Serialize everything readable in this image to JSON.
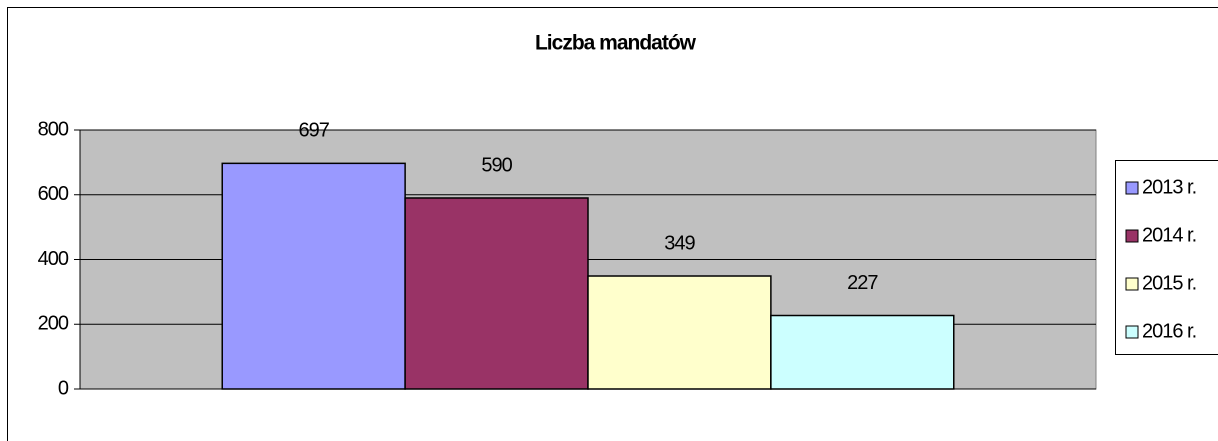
{
  "chart_data": {
    "type": "bar",
    "title": "Liczba mandatów",
    "categories": [
      null
    ],
    "series": [
      {
        "name": "2013 r.",
        "color": "#9999ff",
        "values": [
          697
        ]
      },
      {
        "name": "2014 r.",
        "color": "#993366",
        "values": [
          590
        ]
      },
      {
        "name": "2015 r.",
        "color": "#ffffcc",
        "values": [
          349
        ]
      },
      {
        "name": "2016 r.",
        "color": "#ccffff",
        "values": [
          227
        ]
      }
    ],
    "ylim": [
      0,
      800
    ],
    "yticks": [
      0,
      200,
      400,
      600,
      800
    ],
    "grid": true,
    "legend": "right"
  }
}
